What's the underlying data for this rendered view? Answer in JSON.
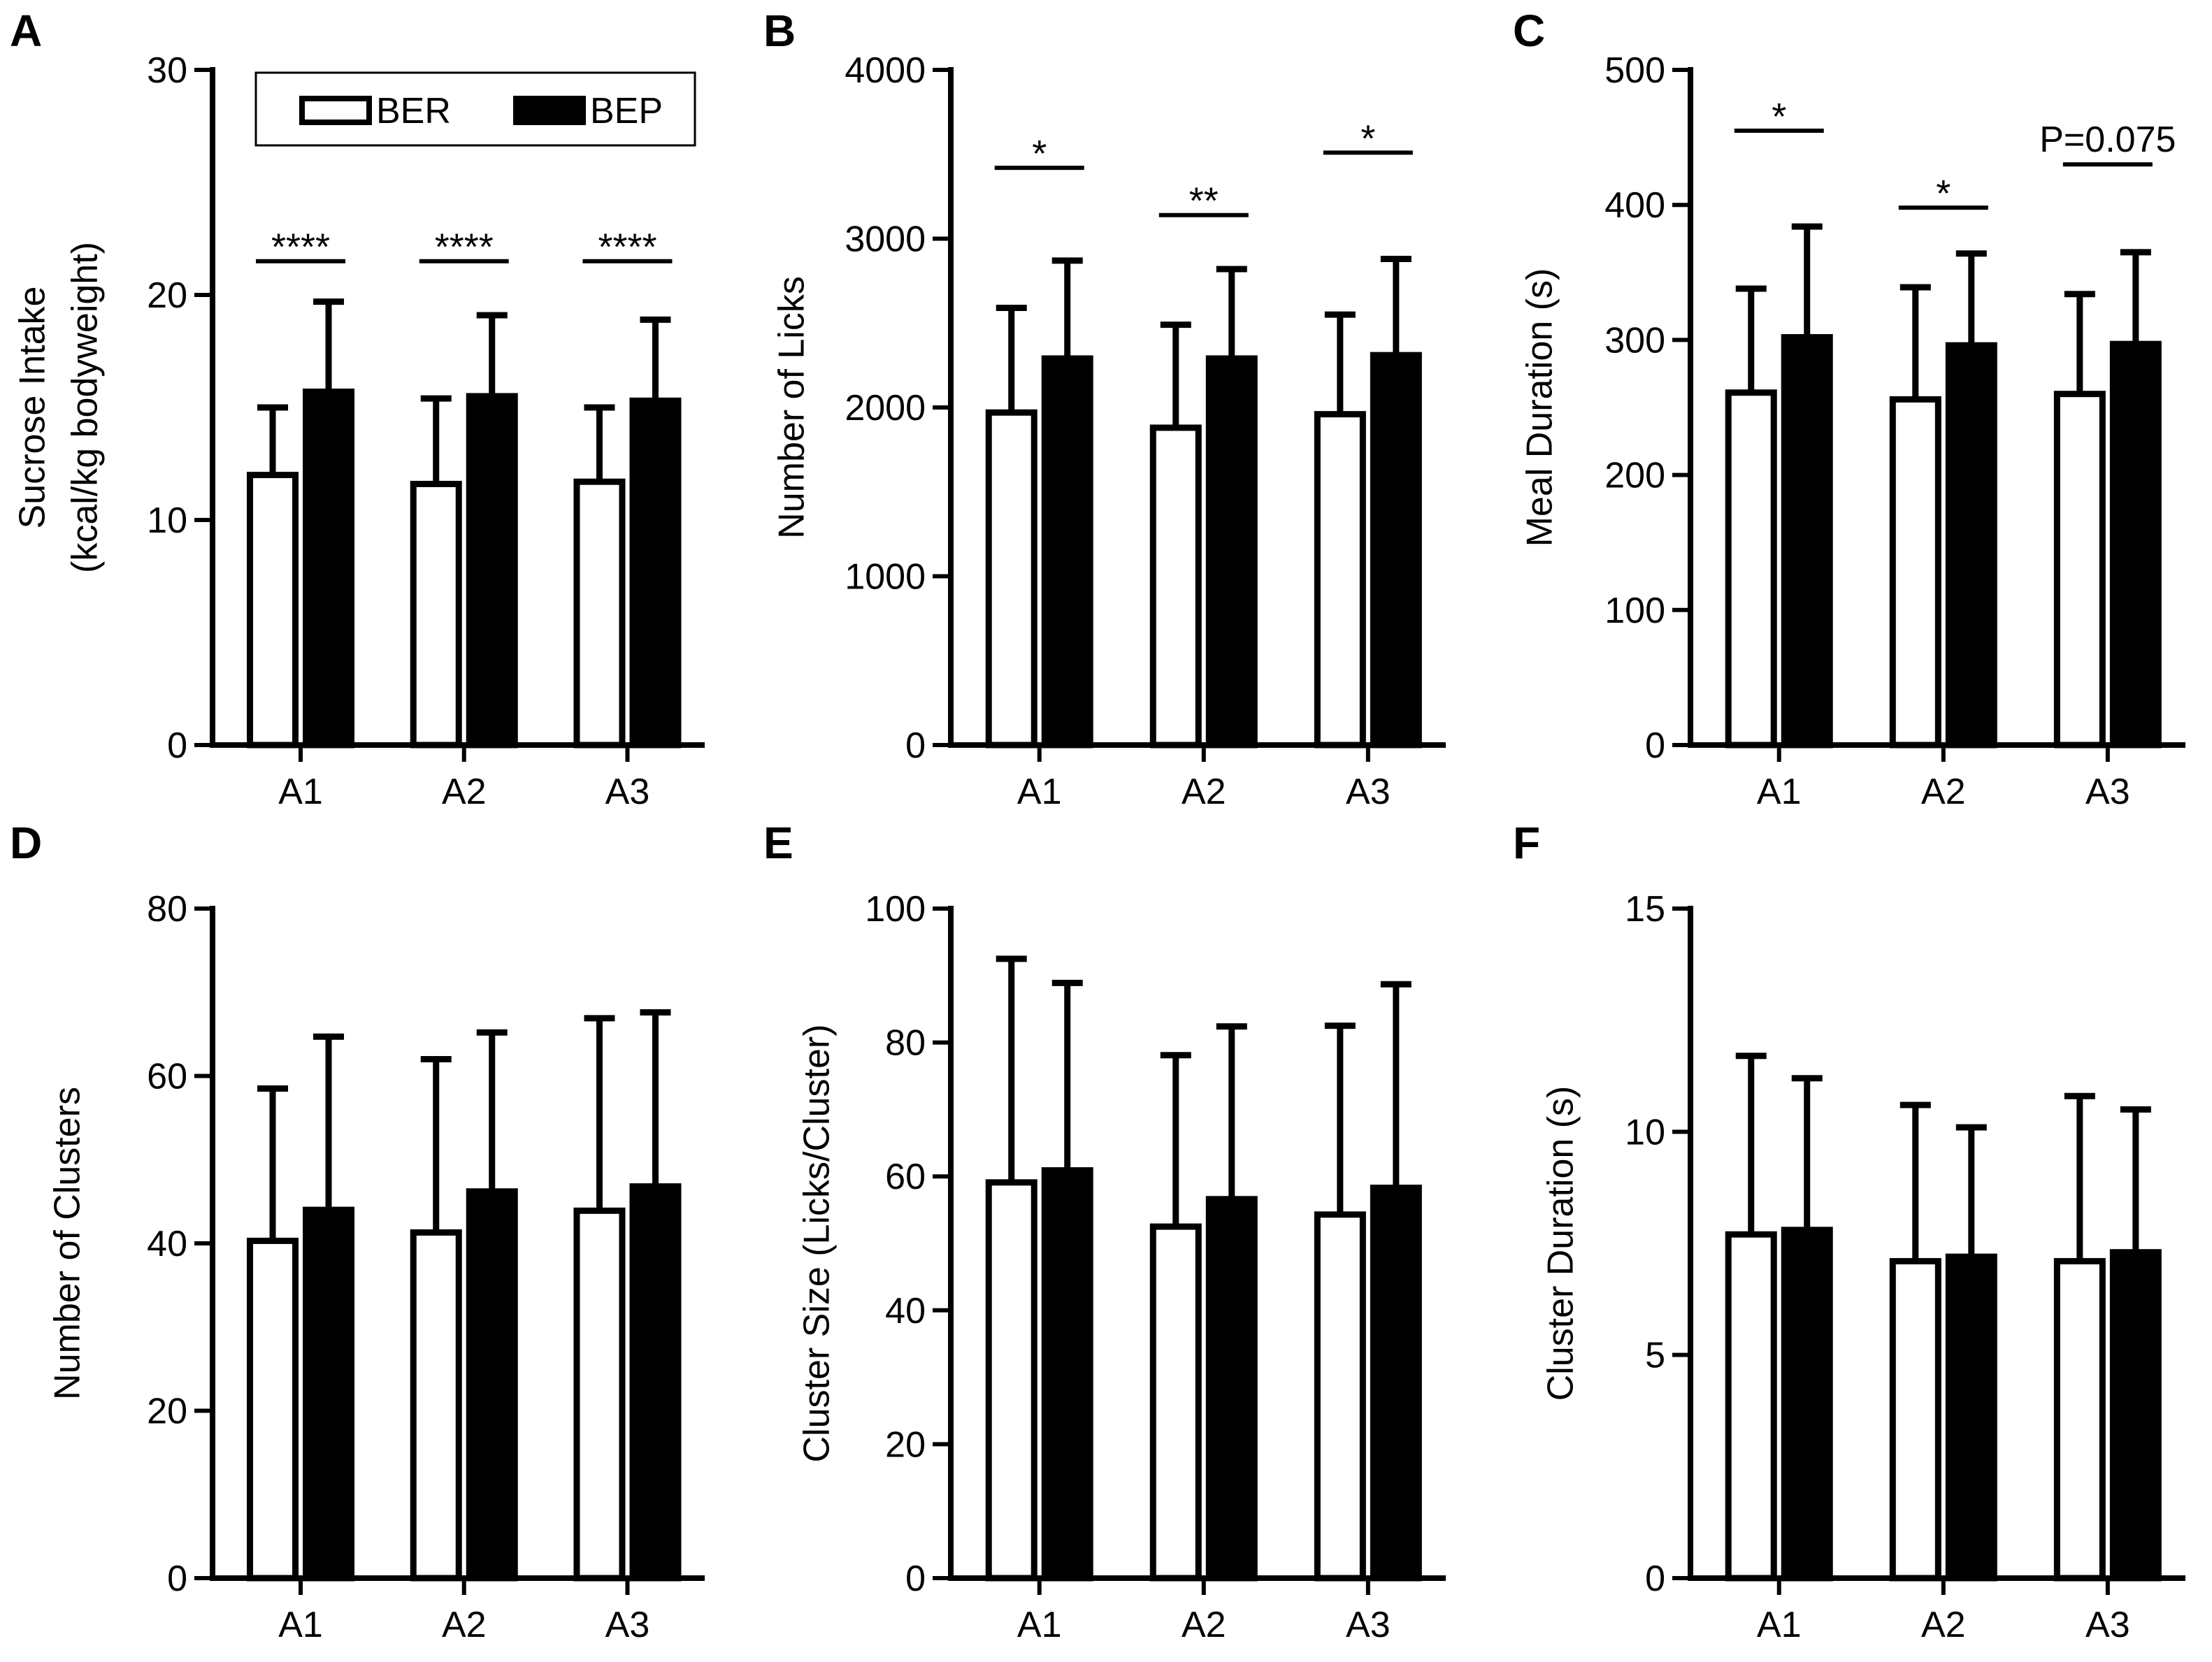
{
  "legend": {
    "items": [
      {
        "label": "BER",
        "fill": "#ffffff"
      },
      {
        "label": "BEP",
        "fill": "#000000"
      }
    ]
  },
  "chart_data": [
    {
      "panel": "A",
      "type": "bar",
      "categories": [
        "A1",
        "A2",
        "A3"
      ],
      "ylabel": [
        "Sucrose Intake",
        "(kcal/kg bodyweight)"
      ],
      "ylim": [
        0,
        30
      ],
      "yticks": [
        0,
        10,
        20,
        30
      ],
      "yticklabels": [
        "0",
        "10",
        "20",
        "30"
      ],
      "series": [
        {
          "name": "BER",
          "values": [
            12.0,
            11.6,
            11.7
          ],
          "errors": [
            3.0,
            3.8,
            3.3
          ]
        },
        {
          "name": "BEP",
          "values": [
            15.7,
            15.5,
            15.3
          ],
          "errors": [
            4.0,
            3.6,
            3.6
          ]
        }
      ],
      "annotations": [
        {
          "category": "A1",
          "text": "****",
          "y": 21.5
        },
        {
          "category": "A2",
          "text": "****",
          "y": 21.5
        },
        {
          "category": "A3",
          "text": "****",
          "y": 21.5
        }
      ]
    },
    {
      "panel": "B",
      "type": "bar",
      "categories": [
        "A1",
        "A2",
        "A3"
      ],
      "ylabel": [
        "Number of Licks"
      ],
      "ylim": [
        0,
        4000
      ],
      "yticks": [
        0,
        1000,
        2000,
        3000,
        4000
      ],
      "yticklabels": [
        "0",
        "1000",
        "2000",
        "3000",
        "4000"
      ],
      "series": [
        {
          "name": "BER",
          "values": [
            1970,
            1880,
            1960
          ],
          "errors": [
            620,
            610,
            590
          ]
        },
        {
          "name": "BEP",
          "values": [
            2290,
            2290,
            2310
          ],
          "errors": [
            580,
            530,
            570
          ]
        }
      ],
      "annotations": [
        {
          "category": "A1",
          "text": "*",
          "y": 3420
        },
        {
          "category": "A2",
          "text": "**",
          "y": 3140
        },
        {
          "category": "A3",
          "text": "*",
          "y": 3510
        }
      ]
    },
    {
      "panel": "C",
      "type": "bar",
      "categories": [
        "A1",
        "A2",
        "A3"
      ],
      "ylabel": [
        "Meal Duration (s)"
      ],
      "ylim": [
        0,
        500
      ],
      "yticks": [
        0,
        100,
        200,
        300,
        400,
        500
      ],
      "yticklabels": [
        "0",
        "100",
        "200",
        "300",
        "400",
        "500"
      ],
      "series": [
        {
          "name": "BER",
          "values": [
            261,
            256,
            260
          ],
          "errors": [
            77,
            83,
            74
          ]
        },
        {
          "name": "BEP",
          "values": [
            302,
            296,
            297
          ],
          "errors": [
            82,
            68,
            68
          ]
        }
      ],
      "annotations": [
        {
          "category": "A1",
          "text": "*",
          "y": 455
        },
        {
          "category": "A2",
          "text": "*",
          "y": 398
        },
        {
          "category": "A3",
          "text": "P=0.075",
          "y": 430
        }
      ]
    },
    {
      "panel": "D",
      "type": "bar",
      "categories": [
        "A1",
        "A2",
        "A3"
      ],
      "ylabel": [
        "Number of Clusters"
      ],
      "ylim": [
        0,
        80
      ],
      "yticks": [
        0,
        20,
        40,
        60,
        80
      ],
      "yticklabels": [
        "0",
        "20",
        "40",
        "60",
        "80"
      ],
      "series": [
        {
          "name": "BER",
          "values": [
            40.3,
            41.3,
            43.9
          ],
          "errors": [
            18.2,
            20.7,
            23.0
          ]
        },
        {
          "name": "BEP",
          "values": [
            44.0,
            46.2,
            46.8
          ],
          "errors": [
            20.7,
            19.0,
            20.8
          ]
        }
      ],
      "annotations": []
    },
    {
      "panel": "E",
      "type": "bar",
      "categories": [
        "A1",
        "A2",
        "A3"
      ],
      "ylabel": [
        "Cluster Size (Licks/Cluster)"
      ],
      "ylim": [
        0,
        100
      ],
      "yticks": [
        0,
        20,
        40,
        60,
        80,
        100
      ],
      "yticklabels": [
        "0",
        "20",
        "40",
        "60",
        "80",
        "100"
      ],
      "series": [
        {
          "name": "BER",
          "values": [
            59.1,
            52.5,
            54.3
          ],
          "errors": [
            33.4,
            25.6,
            28.2
          ]
        },
        {
          "name": "BEP",
          "values": [
            60.9,
            56.6,
            58.3
          ],
          "errors": [
            28.0,
            25.8,
            30.4
          ]
        }
      ],
      "annotations": []
    },
    {
      "panel": "F",
      "type": "bar",
      "categories": [
        "A1",
        "A2",
        "A3"
      ],
      "ylabel": [
        "Cluster Duration (s)"
      ],
      "ylim": [
        0,
        15
      ],
      "yticks": [
        0,
        5,
        10,
        15
      ],
      "yticklabels": [
        "0",
        "5",
        "10",
        "15"
      ],
      "series": [
        {
          "name": "BER",
          "values": [
            7.7,
            7.1,
            7.1
          ],
          "errors": [
            4.0,
            3.5,
            3.7
          ]
        },
        {
          "name": "BEP",
          "values": [
            7.8,
            7.2,
            7.3
          ],
          "errors": [
            3.4,
            2.9,
            3.2
          ]
        }
      ],
      "annotations": []
    }
  ]
}
